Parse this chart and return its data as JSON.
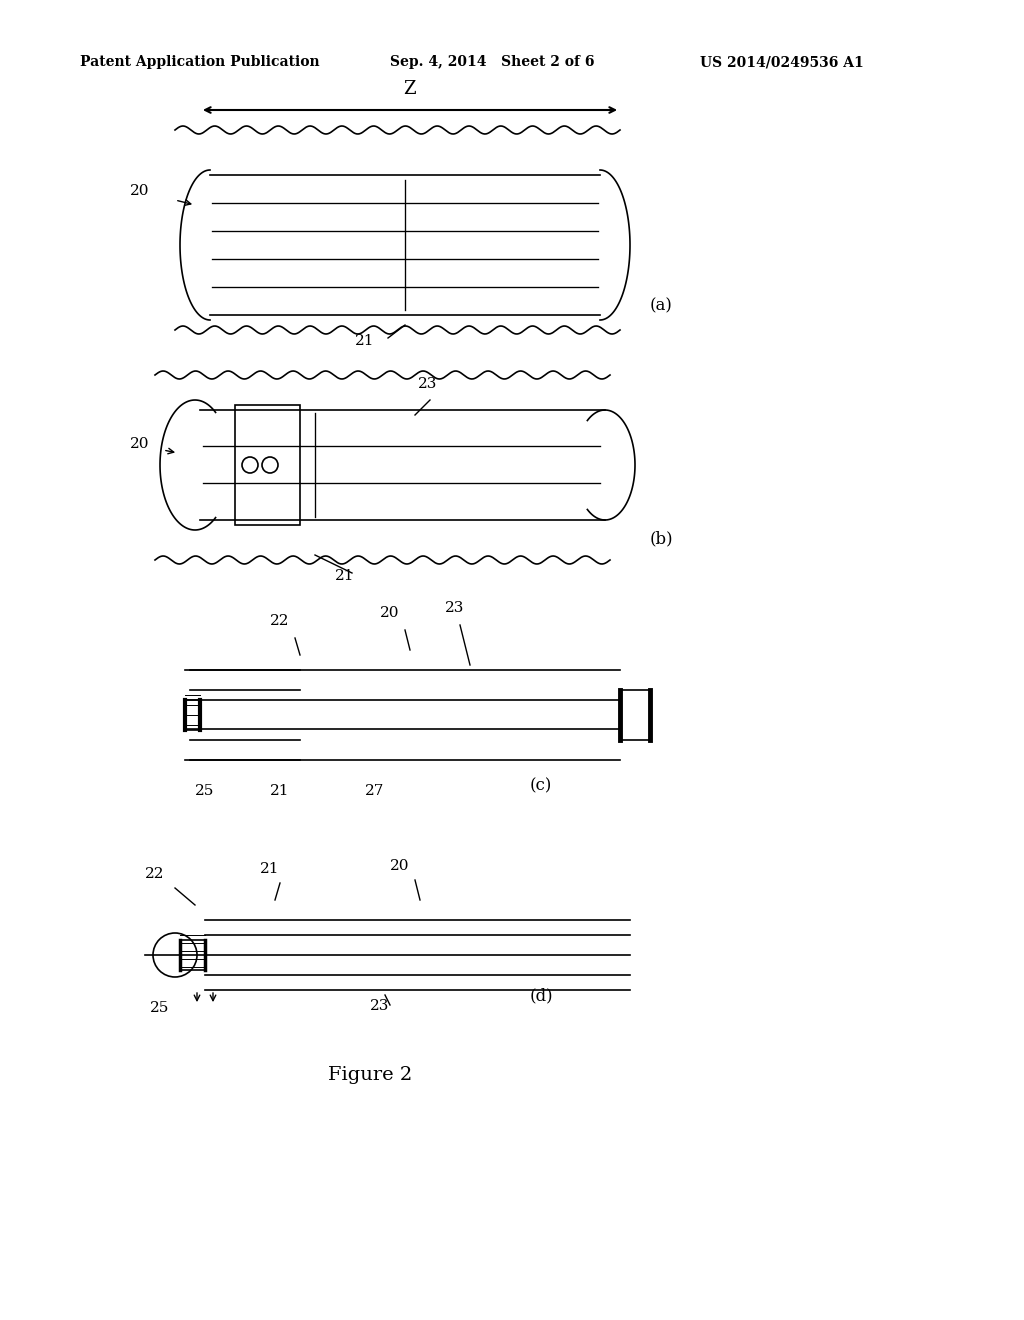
{
  "header_left": "Patent Application Publication",
  "header_mid": "Sep. 4, 2014   Sheet 2 of 6",
  "header_right": "US 2014/0249536 A1",
  "figure_title": "Figure 2",
  "bg_color": "#ffffff",
  "line_color": "#000000",
  "labels": {
    "z_arrow": "Z",
    "label_a": "(a)",
    "label_b": "(b)",
    "label_c": "(c)",
    "label_d": "(d)",
    "num_20a": "20",
    "num_21a": "21",
    "num_20b": "20",
    "num_21b": "21",
    "num_23b": "23",
    "num_22c": "22",
    "num_20c": "20",
    "num_23c": "23",
    "num_25c": "25",
    "num_21c": "21",
    "num_27c": "27",
    "num_22d": "22",
    "num_21d": "21",
    "num_20d": "20",
    "num_25d": "25",
    "num_23d": "23"
  }
}
